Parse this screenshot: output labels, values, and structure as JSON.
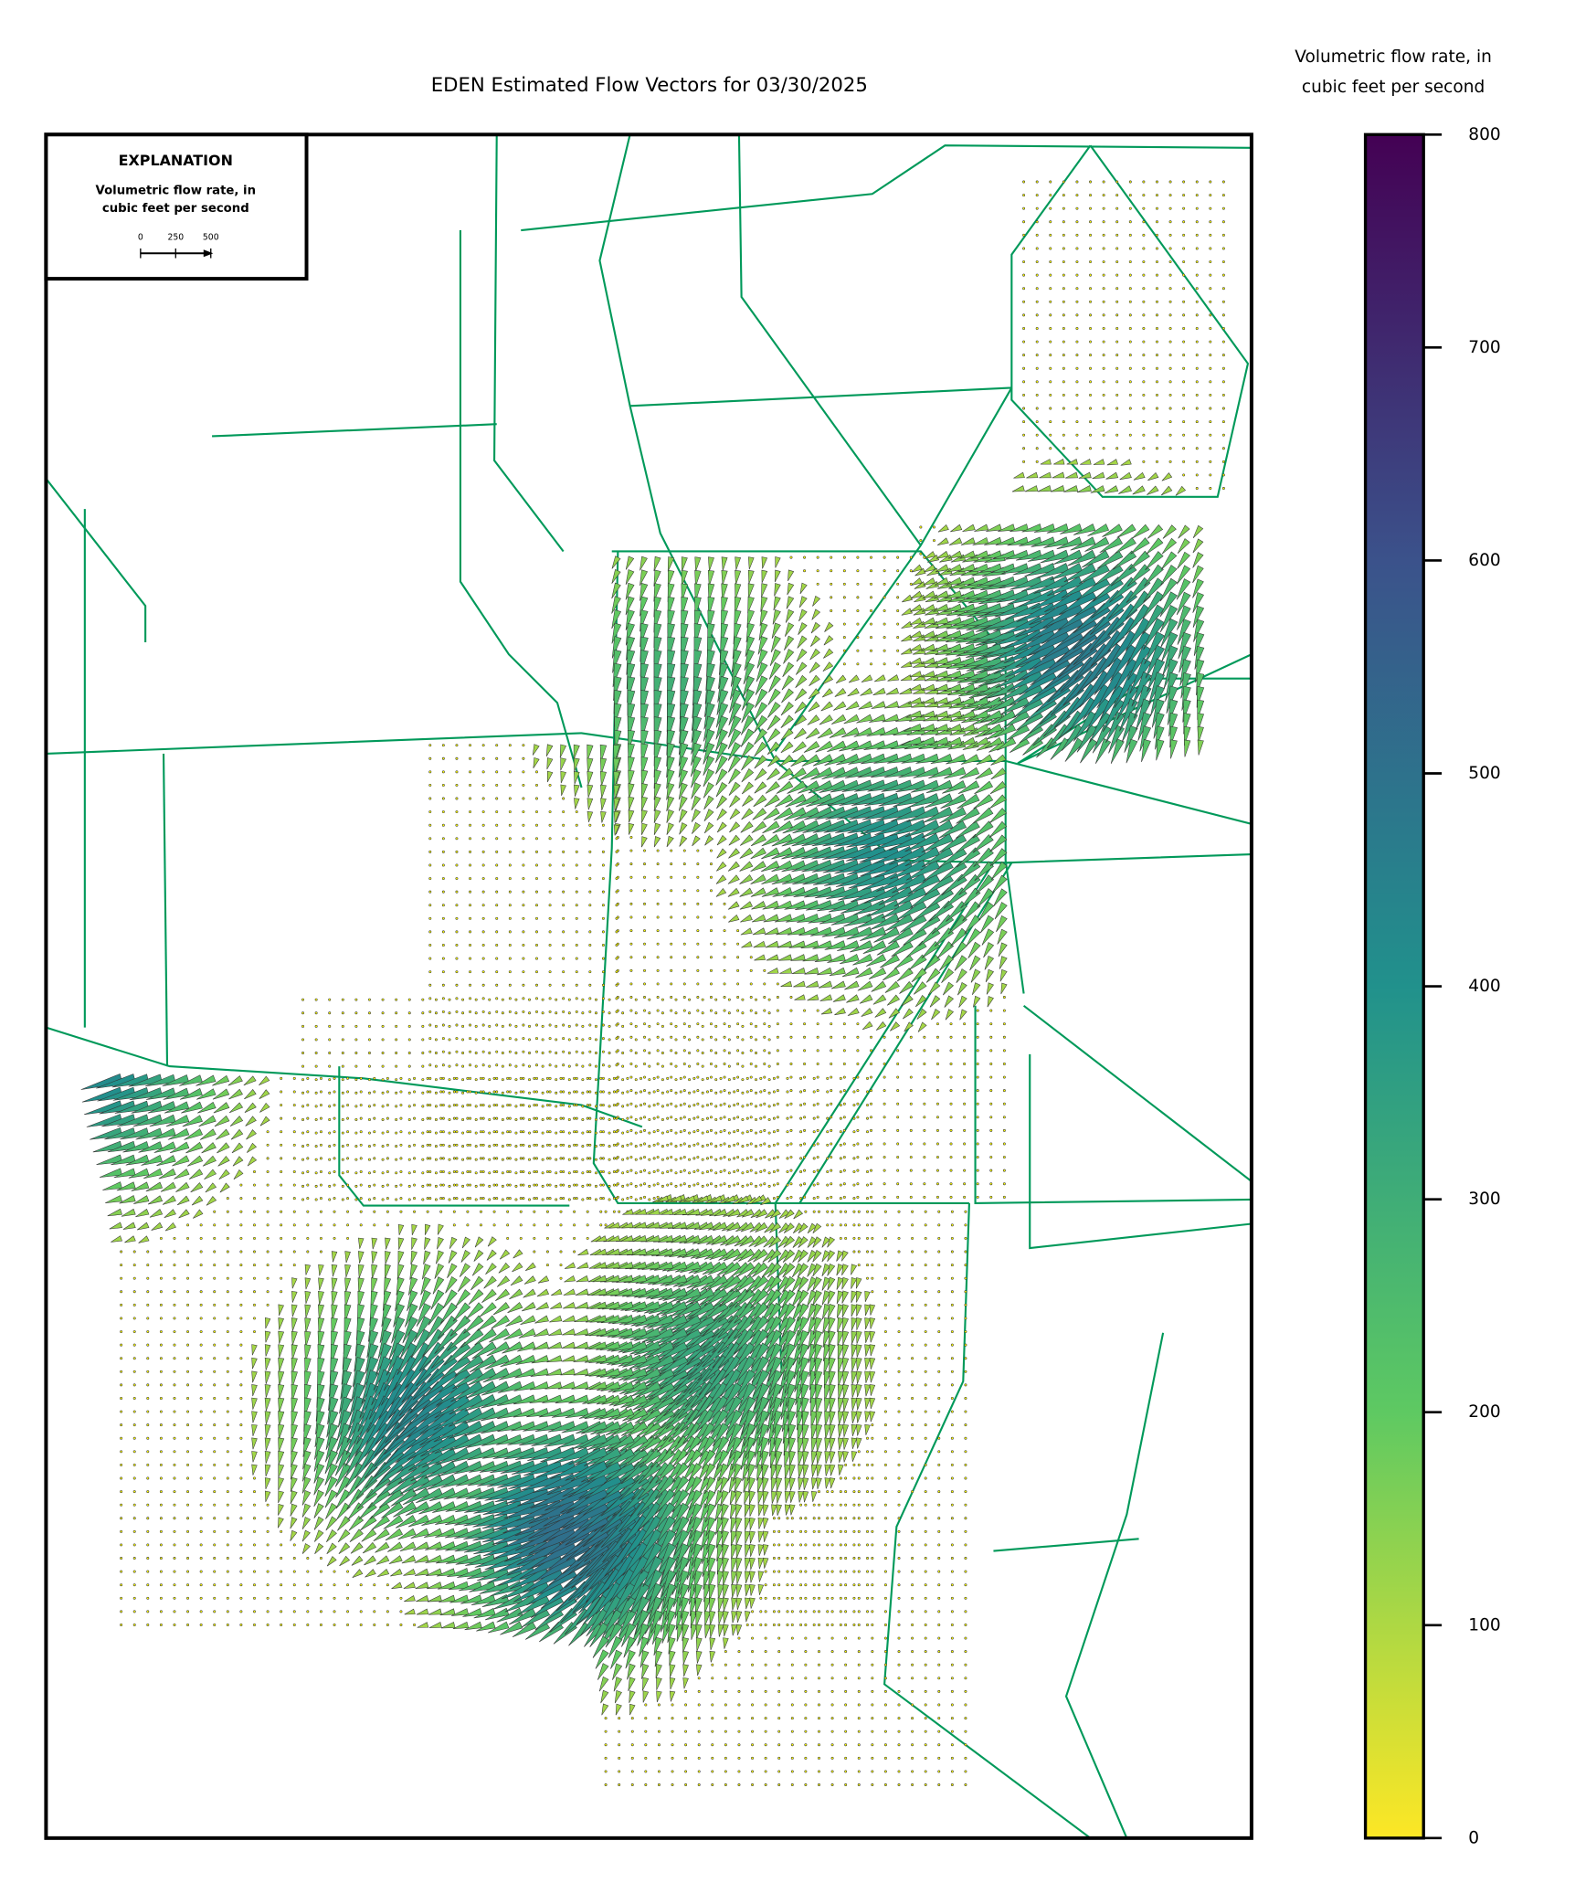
{
  "title": "EDEN Estimated Flow Vectors for 03/30/2025",
  "explanation": {
    "title": "EXPLANATION",
    "subtitle": [
      "Volumetric flow rate, in",
      "cubic feet per second"
    ],
    "scale_ticks": [
      0,
      250,
      500
    ]
  },
  "colorbar": {
    "label": [
      "Volumetric flow rate, in",
      "cubic feet per second"
    ],
    "lim": [
      0,
      800
    ],
    "ticks": [
      0,
      100,
      200,
      300,
      400,
      500,
      600,
      700,
      800
    ],
    "colors": [
      "#fde725",
      "#5ec962",
      "#21918c",
      "#3b528b",
      "#440154"
    ]
  }
}
